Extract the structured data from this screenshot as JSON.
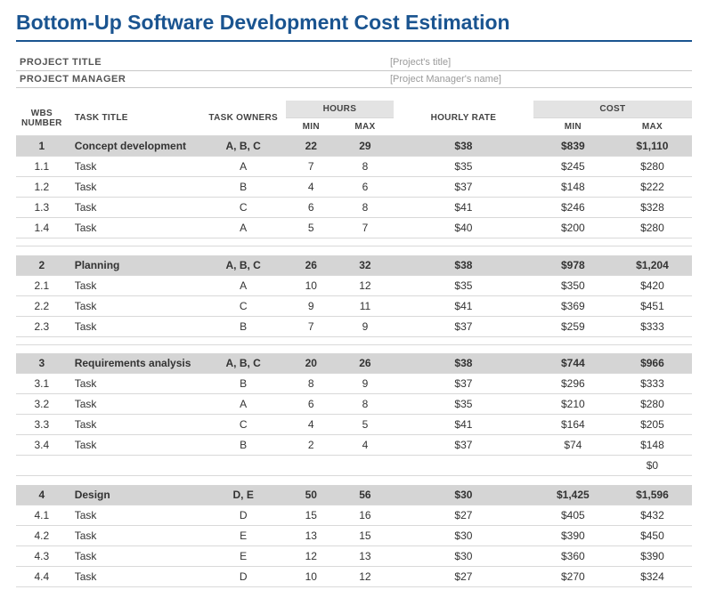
{
  "title": "Bottom-Up Software Development Cost Estimation",
  "meta": {
    "project_title_label": "PROJECT TITLE",
    "project_title_value": "[Project's title]",
    "project_manager_label": "PROJECT MANAGER",
    "project_manager_value": "[Project Manager's name]"
  },
  "headers": {
    "wbs": "WBS NUMBER",
    "task_title": "TASK TITLE",
    "task_owners": "TASK OWNERS",
    "hours": "HOURS",
    "min": "MIN",
    "max": "MAX",
    "hourly_rate": "HOURLY RATE",
    "cost": "COST",
    "cost_min": "MIN",
    "cost_max": "MAX"
  },
  "sections": [
    {
      "summary": {
        "wbs": "1",
        "title": "Concept development",
        "owners": "A, B, C",
        "hmin": "22",
        "hmax": "29",
        "rate": "$38",
        "cmin": "$839",
        "cmax": "$1,110"
      },
      "rows": [
        {
          "wbs": "1.1",
          "title": "Task",
          "owners": "A",
          "hmin": "7",
          "hmax": "8",
          "rate": "$35",
          "cmin": "$245",
          "cmax": "$280"
        },
        {
          "wbs": "1.2",
          "title": "Task",
          "owners": "B",
          "hmin": "4",
          "hmax": "6",
          "rate": "$37",
          "cmin": "$148",
          "cmax": "$222"
        },
        {
          "wbs": "1.3",
          "title": "Task",
          "owners": "C",
          "hmin": "6",
          "hmax": "8",
          "rate": "$41",
          "cmin": "$246",
          "cmax": "$328"
        },
        {
          "wbs": "1.4",
          "title": "Task",
          "owners": "A",
          "hmin": "5",
          "hmax": "7",
          "rate": "$40",
          "cmin": "$200",
          "cmax": "$280"
        }
      ],
      "trailing_blank": {
        "cmax": ""
      }
    },
    {
      "summary": {
        "wbs": "2",
        "title": "Planning",
        "owners": "A, B, C",
        "hmin": "26",
        "hmax": "32",
        "rate": "$38",
        "cmin": "$978",
        "cmax": "$1,204"
      },
      "rows": [
        {
          "wbs": "2.1",
          "title": "Task",
          "owners": "A",
          "hmin": "10",
          "hmax": "12",
          "rate": "$35",
          "cmin": "$350",
          "cmax": "$420"
        },
        {
          "wbs": "2.2",
          "title": "Task",
          "owners": "C",
          "hmin": "9",
          "hmax": "11",
          "rate": "$41",
          "cmin": "$369",
          "cmax": "$451"
        },
        {
          "wbs": "2.3",
          "title": "Task",
          "owners": "B",
          "hmin": "7",
          "hmax": "9",
          "rate": "$37",
          "cmin": "$259",
          "cmax": "$333"
        }
      ],
      "trailing_blank": {
        "cmax": ""
      }
    },
    {
      "summary": {
        "wbs": "3",
        "title": "Requirements analysis",
        "owners": "A, B, C",
        "hmin": "20",
        "hmax": "26",
        "rate": "$38",
        "cmin": "$744",
        "cmax": "$966"
      },
      "rows": [
        {
          "wbs": "3.1",
          "title": "Task",
          "owners": "B",
          "hmin": "8",
          "hmax": "9",
          "rate": "$37",
          "cmin": "$296",
          "cmax": "$333"
        },
        {
          "wbs": "3.2",
          "title": "Task",
          "owners": "A",
          "hmin": "6",
          "hmax": "8",
          "rate": "$35",
          "cmin": "$210",
          "cmax": "$280"
        },
        {
          "wbs": "3.3",
          "title": "Task",
          "owners": "C",
          "hmin": "4",
          "hmax": "5",
          "rate": "$41",
          "cmin": "$164",
          "cmax": "$205"
        },
        {
          "wbs": "3.4",
          "title": "Task",
          "owners": "B",
          "hmin": "2",
          "hmax": "4",
          "rate": "$37",
          "cmin": "$74",
          "cmax": "$148"
        }
      ],
      "trailing_blank": {
        "cmax": "$0"
      }
    },
    {
      "summary": {
        "wbs": "4",
        "title": "Design",
        "owners": "D, E",
        "hmin": "50",
        "hmax": "56",
        "rate": "$30",
        "cmin": "$1,425",
        "cmax": "$1,596"
      },
      "rows": [
        {
          "wbs": "4.1",
          "title": "Task",
          "owners": "D",
          "hmin": "15",
          "hmax": "16",
          "rate": "$27",
          "cmin": "$405",
          "cmax": "$432"
        },
        {
          "wbs": "4.2",
          "title": "Task",
          "owners": "E",
          "hmin": "13",
          "hmax": "15",
          "rate": "$30",
          "cmin": "$390",
          "cmax": "$450"
        },
        {
          "wbs": "4.3",
          "title": "Task",
          "owners": "E",
          "hmin": "12",
          "hmax": "13",
          "rate": "$30",
          "cmin": "$360",
          "cmax": "$390"
        },
        {
          "wbs": "4.4",
          "title": "Task",
          "owners": "D",
          "hmin": "10",
          "hmax": "12",
          "rate": "$27",
          "cmin": "$270",
          "cmax": "$324"
        }
      ]
    }
  ]
}
